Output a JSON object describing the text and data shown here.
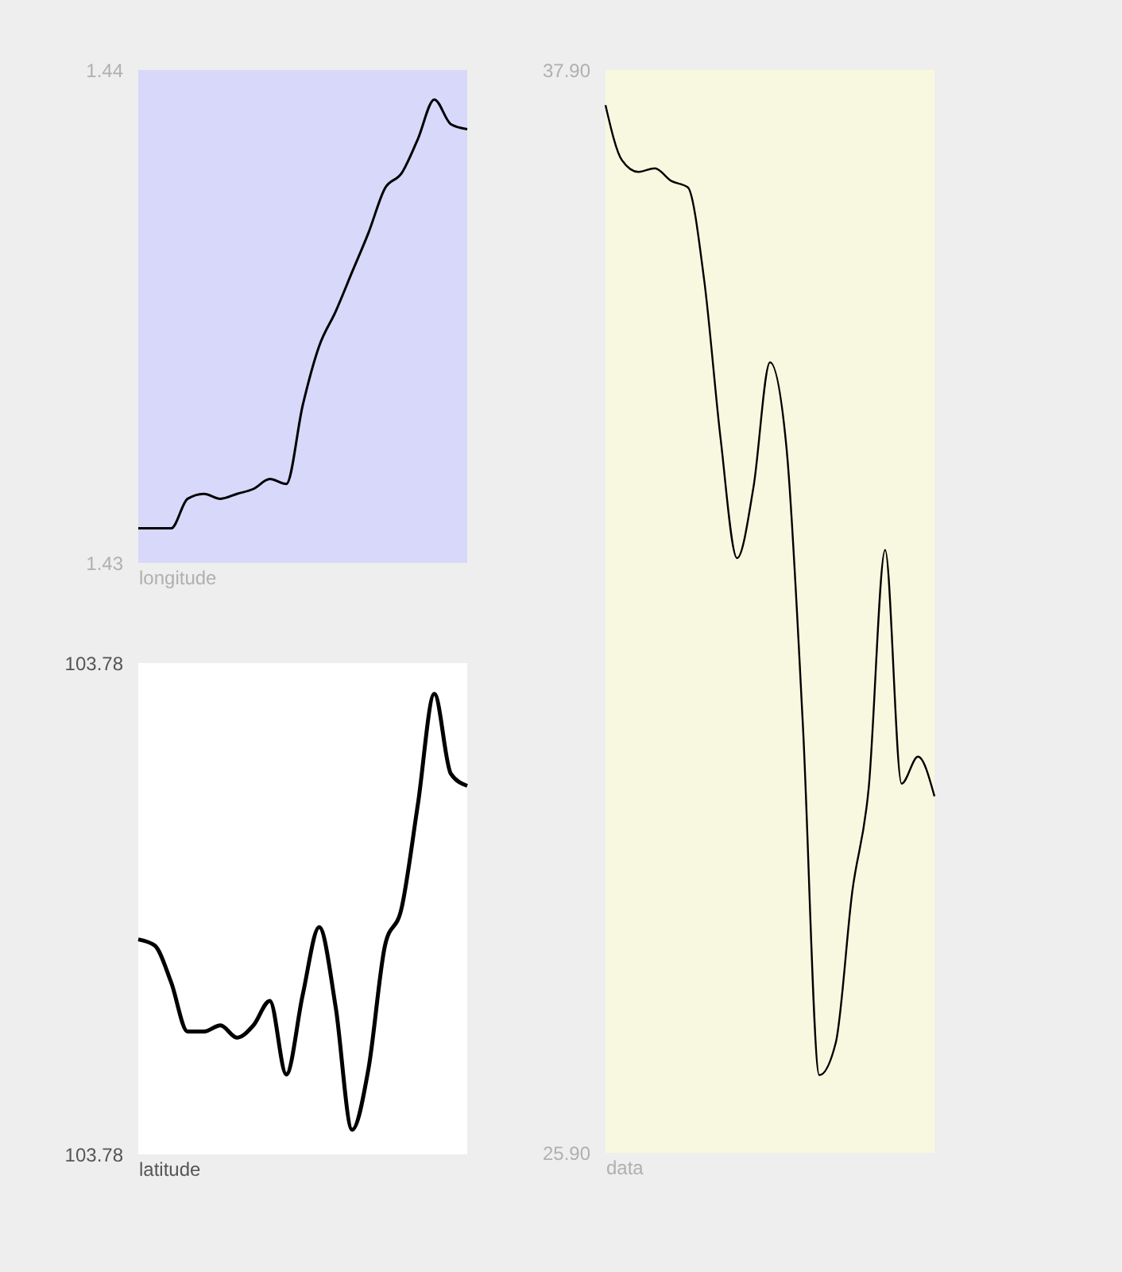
{
  "chart_data": [
    {
      "type": "line",
      "xlabel": "longitude",
      "categories": [
        null,
        null,
        null,
        null,
        null,
        null,
        null,
        null,
        null,
        null,
        null,
        null,
        null,
        null,
        null,
        null,
        null,
        null,
        null,
        null,
        null
      ],
      "ylim": [
        1.43,
        1.44
      ],
      "yticks": [
        1.43,
        1.44
      ],
      "tick_labels": "y",
      "grid": false,
      "legend": false,
      "series": [
        {
          "color": "#000000",
          "values": [
            1.4307,
            1.4307,
            1.4307,
            1.4313,
            1.4314,
            1.4313,
            1.4314,
            1.4315,
            1.4317,
            1.4316,
            1.4332,
            1.4344,
            1.4351,
            1.4359,
            1.4367,
            1.4376,
            1.4379,
            1.4386,
            1.4394,
            1.4389,
            1.4388
          ]
        }
      ]
    },
    {
      "type": "line",
      "xlabel": "latitude",
      "categories": [
        null,
        null,
        null,
        null,
        null,
        null,
        null,
        null,
        null,
        null,
        null,
        null,
        null,
        null,
        null,
        null,
        null,
        null,
        null,
        null,
        null
      ],
      "ylim": [
        103.776,
        103.784
      ],
      "yticks": [
        {
          "value": 103.776,
          "label": "103.78"
        },
        {
          "value": 103.784,
          "label": "103.78"
        }
      ],
      "tick_labels": "y",
      "grid": false,
      "legend": false,
      "series": [
        {
          "color": "#000000",
          "values": [
            103.7795,
            103.7794,
            103.7788,
            103.778,
            103.778,
            103.7781,
            103.7779,
            103.7781,
            103.7785,
            103.7773,
            103.7786,
            103.7797,
            103.7784,
            103.7764,
            103.7774,
            103.7794,
            103.78,
            103.7817,
            103.7835,
            103.7822,
            103.782
          ]
        }
      ]
    },
    {
      "type": "line",
      "xlabel": "data",
      "categories": [
        null,
        null,
        null,
        null,
        null,
        null,
        null,
        null,
        null,
        null,
        null,
        null,
        null,
        null,
        null,
        null,
        null,
        null,
        null,
        null,
        null
      ],
      "ylim": [
        25.9,
        37.9
      ],
      "yticks": [
        {
          "value": 25.9,
          "label": "25.90"
        },
        {
          "value": 37.9,
          "label": "37.90"
        }
      ],
      "tick_labels": "y",
      "grid": false,
      "legend": false,
      "series": [
        {
          "color": "#000000",
          "values": [
            37.51,
            36.9,
            36.77,
            36.81,
            36.67,
            36.6,
            35.57,
            33.81,
            32.49,
            33.28,
            34.66,
            33.72,
            30.64,
            26.76,
            27.12,
            28.79,
            29.94,
            32.58,
            29.99,
            30.29,
            29.85
          ]
        }
      ]
    }
  ]
}
